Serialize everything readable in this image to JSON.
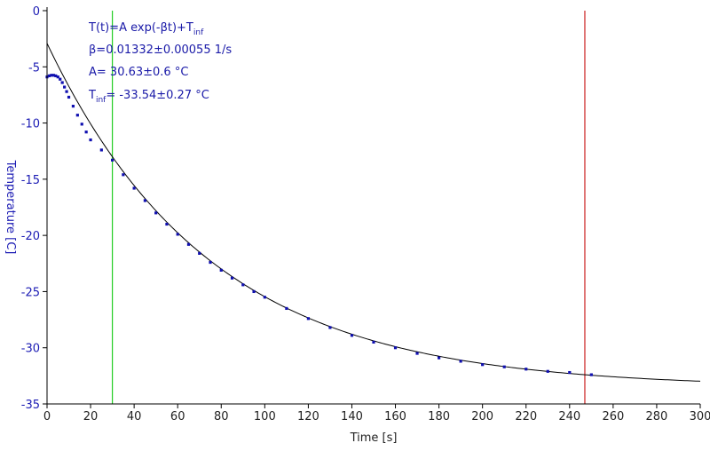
{
  "chart_data": {
    "type": "scatter",
    "xlabel": "Time [s]",
    "ylabel": "Temperature [C]",
    "xlim": [
      0,
      300
    ],
    "ylim": [
      -35,
      0
    ],
    "x_ticks": [
      0,
      20,
      40,
      60,
      80,
      100,
      120,
      140,
      160,
      180,
      200,
      220,
      240,
      260,
      280,
      300
    ],
    "y_ticks": [
      0,
      -5,
      -10,
      -15,
      -20,
      -25,
      -30,
      -35
    ],
    "grid": false,
    "annotations": {
      "model": {
        "main": "T(t)=A exp(-βt)+T",
        "sub": "inf"
      },
      "beta": "β=0.01332±0.00055 1/s",
      "amplitude": "A= 30.63±0.6 °C",
      "t_inf": {
        "main": "T",
        "sub": "inf",
        "rest": "= -33.54±0.27 °C"
      }
    },
    "fit": {
      "A": 30.63,
      "beta": 0.01332,
      "T_inf": -33.54,
      "x_range": [
        0,
        300
      ]
    },
    "vertical_markers": [
      {
        "x": 30,
        "color": "#22cc22"
      },
      {
        "x": 247,
        "color": "#cc2222"
      }
    ],
    "measured": {
      "x": [
        0,
        1,
        2,
        3,
        4,
        5,
        6,
        7,
        8,
        9,
        10,
        12,
        14,
        16,
        18,
        20,
        25,
        30,
        35,
        40,
        45,
        50,
        55,
        60,
        65,
        70,
        75,
        80,
        85,
        90,
        95,
        100,
        110,
        120,
        130,
        140,
        150,
        160,
        170,
        180,
        190,
        200,
        210,
        220,
        230,
        240,
        250
      ],
      "y": [
        -5.9,
        -5.8,
        -5.75,
        -5.75,
        -5.8,
        -5.9,
        -6.1,
        -6.4,
        -6.8,
        -7.2,
        -7.7,
        -8.5,
        -9.3,
        -10.1,
        -10.8,
        -11.5,
        -12.4,
        -13.3,
        -14.6,
        -15.8,
        -16.9,
        -18.0,
        -19.0,
        -19.9,
        -20.8,
        -21.6,
        -22.4,
        -23.1,
        -23.8,
        -24.4,
        -25.0,
        -25.5,
        -26.5,
        -27.4,
        -28.2,
        -28.9,
        -29.5,
        -30.0,
        -30.5,
        -30.9,
        -31.2,
        -31.5,
        -31.7,
        -31.9,
        -32.1,
        -32.2,
        -32.4
      ]
    },
    "colors": {
      "data": "#1010b0",
      "fit": "#000000",
      "axis": "#000000",
      "y_labels": "#1c1cb4"
    }
  }
}
